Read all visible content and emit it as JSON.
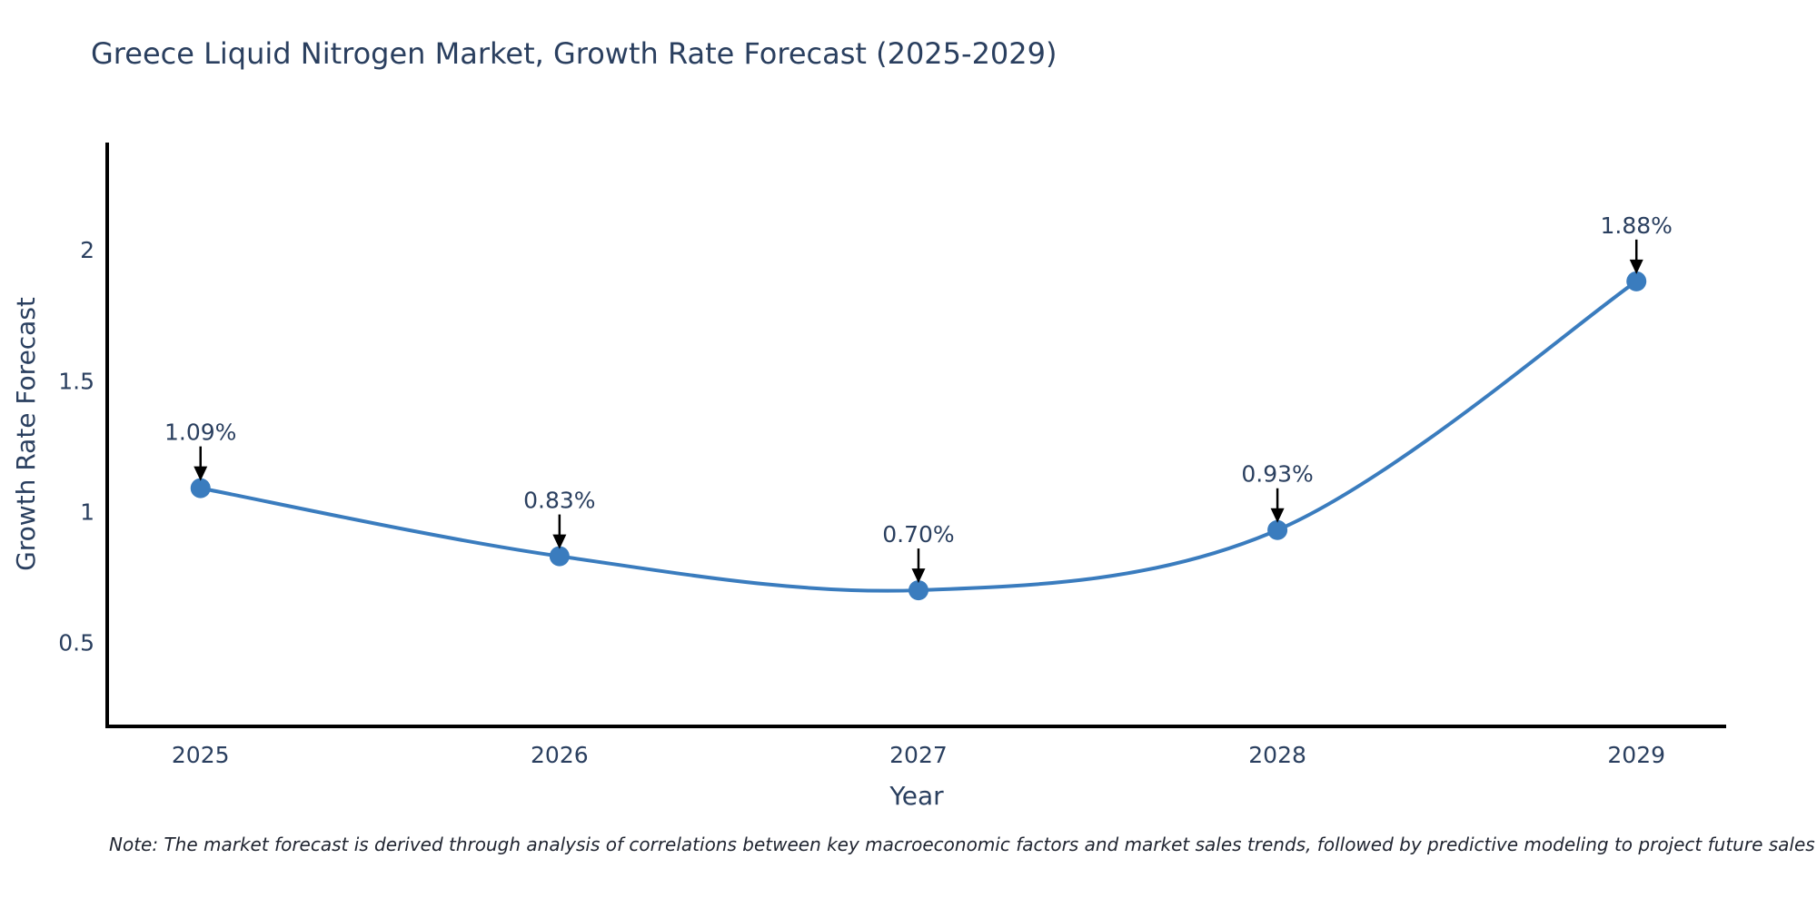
{
  "chart_data": {
    "type": "line",
    "title": "Greece Liquid Nitrogen Market, Growth Rate Forecast (2025-2029)",
    "xlabel": "Year",
    "ylabel": "Growth Rate Forecast",
    "note": "Note: The market forecast is derived through analysis of correlations between key macroeconomic factors and market sales trends, followed by predictive modeling to project future sales",
    "x": [
      2025,
      2026,
      2027,
      2028,
      2029
    ],
    "series": [
      {
        "name": "Growth Rate Forecast",
        "values": [
          1.09,
          0.83,
          0.7,
          0.93,
          1.88
        ]
      }
    ],
    "point_labels": [
      "1.09%",
      "0.83%",
      "0.70%",
      "0.93%",
      "1.88%"
    ],
    "yticks": [
      0.5,
      1,
      1.5,
      2
    ],
    "ytick_labels": [
      "0.5",
      "1",
      "1.5",
      "2"
    ],
    "xtick_labels": [
      "2025",
      "2026",
      "2027",
      "2028",
      "2029"
    ],
    "ylim": [
      0.18,
      2.41
    ],
    "xlim": [
      2024.74,
      2029.25
    ],
    "line_shape": "spline",
    "grid": false,
    "legend": false,
    "annotations_arrows": true,
    "colors": {
      "line": "#3a7cbe",
      "marker": "#3a7cbe",
      "axis": "#000000",
      "arrow": "#000000",
      "text": "#2a3f5f",
      "note_text": "#1f2430",
      "background": "#ffffff"
    }
  }
}
